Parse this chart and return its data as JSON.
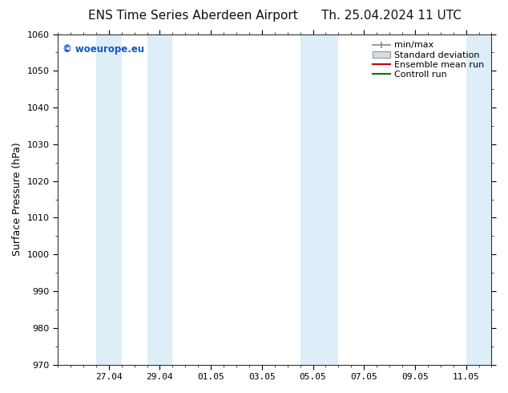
{
  "title_left": "ENS Time Series Aberdeen Airport",
  "title_right": "Th. 25.04.2024 11 UTC",
  "ylabel": "Surface Pressure (hPa)",
  "ylim": [
    970,
    1060
  ],
  "yticks": [
    970,
    980,
    990,
    1000,
    1010,
    1020,
    1030,
    1040,
    1050,
    1060
  ],
  "xlim": [
    0,
    17
  ],
  "xtick_labels": [
    "27.04",
    "29.04",
    "01.05",
    "03.05",
    "05.05",
    "07.05",
    "09.05",
    "11.05"
  ],
  "xtick_positions": [
    2,
    4,
    6,
    8,
    10,
    12,
    14,
    16
  ],
  "shaded_bands": [
    {
      "x_start": 1.5,
      "x_end": 2.5
    },
    {
      "x_start": 3.5,
      "x_end": 4.5
    },
    {
      "x_start": 9.5,
      "x_end": 11.0
    },
    {
      "x_start": 16.0,
      "x_end": 17.0
    }
  ],
  "shade_color": "#ddeef8",
  "background_color": "#ffffff",
  "watermark": "© woeurope.eu",
  "watermark_color": "#1155cc",
  "legend_labels": [
    "min/max",
    "Standard deviation",
    "Ensemble mean run",
    "Controll run"
  ],
  "title_fontsize": 11,
  "axis_fontsize": 9,
  "tick_fontsize": 8,
  "legend_fontsize": 8
}
